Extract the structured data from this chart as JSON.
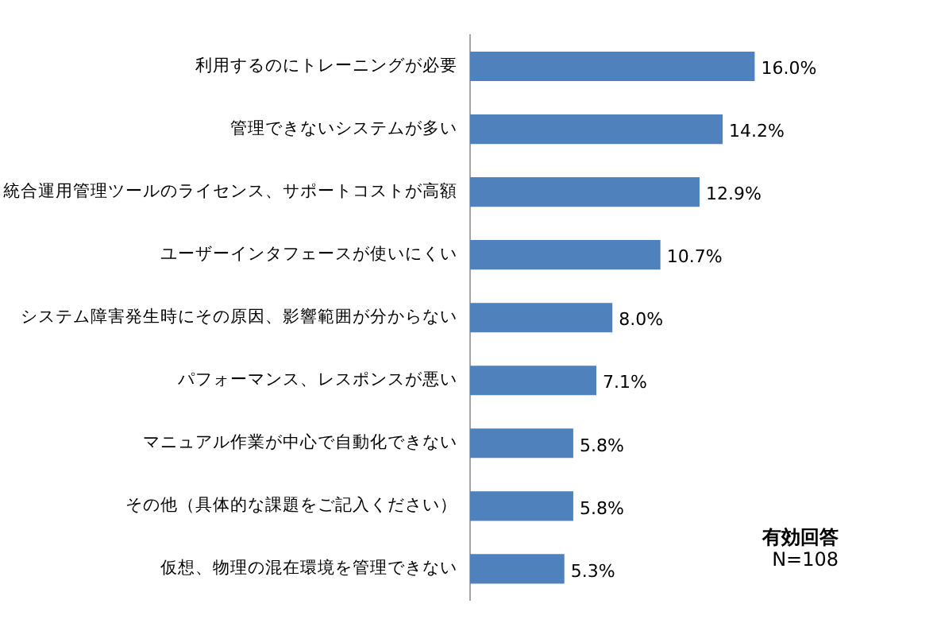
{
  "chart_data": {
    "type": "bar",
    "orientation": "horizontal",
    "categories": [
      "利用するのにトレーニングが必要",
      "管理できないシステムが多い",
      "統合運用管理ツールのライセンス、サポートコストが高額",
      "ユーザーインタフェースが使いにくい",
      "システム障害発生時にその原因、影響範囲が分からない",
      "パフォーマンス、レスポンスが悪い",
      "マニュアル作業が中心で自動化できない",
      "その他（具体的な課題をご記入ください）",
      "仮想、物理の混在環境を管理できない"
    ],
    "values": [
      16.0,
      14.2,
      12.9,
      10.7,
      8.0,
      7.1,
      5.8,
      5.8,
      5.3
    ],
    "value_labels": [
      "16.0%",
      "14.2%",
      "12.9%",
      "10.7%",
      "8.0%",
      "7.1%",
      "5.8%",
      "5.8%",
      "5.3%"
    ],
    "color": "#4f81bd",
    "tick_labels": "y",
    "grid": false,
    "legend": false,
    "annotations": [
      "有効回答",
      "N=108"
    ]
  }
}
